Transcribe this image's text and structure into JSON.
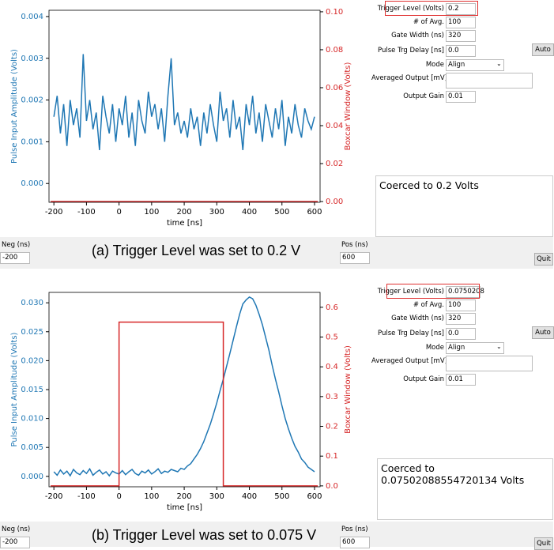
{
  "chart_data": [
    {
      "type": "line",
      "xlabel": "time [ns]",
      "ylabel": "Pulse Input Amplitude (Volts)",
      "y2label": "Boxcar Window (Volts)",
      "xlim": [
        -215,
        617
      ],
      "xticks": [
        -200,
        -100,
        0,
        100,
        200,
        300,
        400,
        500,
        600
      ],
      "ylim": [
        -0.00045,
        0.00415
      ],
      "yticks": [
        {
          "value": 0,
          "label": "0.000"
        },
        0.001,
        0.002,
        0.003,
        0.004
      ],
      "y2lim": [
        -0.0004,
        0.1008
      ],
      "y2ticks": [
        {
          "value": 0,
          "label": "0.00"
        },
        0.02,
        0.04,
        0.06,
        0.08,
        {
          "value": 0.1,
          "label": "0.10"
        }
      ],
      "x": [
        -200,
        -190,
        -180,
        -170,
        -160,
        -150,
        -140,
        -130,
        -120,
        -110,
        -100,
        -90,
        -80,
        -70,
        -60,
        -50,
        -40,
        -30,
        -20,
        -10,
        0,
        10,
        20,
        30,
        40,
        50,
        60,
        70,
        80,
        90,
        100,
        110,
        120,
        130,
        140,
        150,
        160,
        170,
        180,
        190,
        200,
        210,
        220,
        230,
        240,
        250,
        260,
        270,
        280,
        290,
        300,
        310,
        320,
        330,
        340,
        350,
        360,
        370,
        380,
        390,
        400,
        410,
        420,
        430,
        440,
        450,
        460,
        470,
        480,
        490,
        500,
        510,
        520,
        530,
        540,
        550,
        560,
        570,
        580,
        590,
        600
      ],
      "series": [
        {
          "color": "#1f77b4",
          "values": [
            0.0016,
            0.0021,
            0.0012,
            0.0019,
            0.0009,
            0.002,
            0.0014,
            0.0018,
            0.0011,
            0.0031,
            0.0015,
            0.002,
            0.0013,
            0.0017,
            0.0008,
            0.0021,
            0.0016,
            0.0012,
            0.0019,
            0.001,
            0.0018,
            0.0014,
            0.0021,
            0.0011,
            0.0017,
            0.0009,
            0.002,
            0.0015,
            0.0012,
            0.0022,
            0.0016,
            0.0019,
            0.0013,
            0.0018,
            0.001,
            0.0021,
            0.003,
            0.0014,
            0.0017,
            0.0012,
            0.0015,
            0.0011,
            0.0018,
            0.0013,
            0.0016,
            0.0009,
            0.0017,
            0.0012,
            0.0019,
            0.0014,
            0.001,
            0.0022,
            0.0015,
            0.0018,
            0.0011,
            0.002,
            0.0013,
            0.0016,
            0.0008,
            0.0019,
            0.0014,
            0.0021,
            0.0012,
            0.0017,
            0.001,
            0.0019,
            0.0015,
            0.0011,
            0.0018,
            0.0013,
            0.002,
            0.0009,
            0.0016,
            0.0012,
            0.0019,
            0.0014,
            0.0011,
            0.0018,
            0.0015,
            0.0013,
            0.0016
          ]
        },
        {
          "color": "#d62728",
          "axis": "y2",
          "x": [
            -210,
            610
          ],
          "values": [
            0,
            0
          ]
        }
      ]
    },
    {
      "type": "line",
      "xlabel": "time [ns]",
      "ylabel": "Pulse Input Amplitude (Volts)",
      "y2label": "Boxcar Window (Volts)",
      "xlim": [
        -215,
        617
      ],
      "xticks": [
        -200,
        -100,
        0,
        100,
        200,
        300,
        400,
        500,
        600
      ],
      "ylim": [
        -0.0018,
        0.0318
      ],
      "yticks": [
        {
          "value": 0,
          "label": "0.000"
        },
        0.005,
        {
          "value": 0.01,
          "label": "0.010"
        },
        0.015,
        {
          "value": 0.02,
          "label": "0.020"
        },
        0.025,
        {
          "value": 0.03,
          "label": "0.030"
        }
      ],
      "y2lim": [
        -0.003,
        0.65
      ],
      "y2ticks": [
        {
          "value": 0,
          "label": "0.0"
        },
        0.1,
        0.2,
        0.3,
        0.4,
        0.5,
        0.6
      ],
      "x": [
        -200,
        -190,
        -180,
        -170,
        -160,
        -150,
        -140,
        -130,
        -120,
        -110,
        -100,
        -90,
        -80,
        -70,
        -60,
        -50,
        -40,
        -30,
        -20,
        -10,
        0,
        10,
        20,
        30,
        40,
        50,
        60,
        70,
        80,
        90,
        100,
        110,
        120,
        130,
        140,
        150,
        160,
        170,
        180,
        190,
        200,
        210,
        220,
        230,
        240,
        250,
        260,
        270,
        280,
        290,
        300,
        310,
        320,
        330,
        340,
        350,
        360,
        370,
        380,
        390,
        400,
        410,
        420,
        430,
        440,
        450,
        460,
        470,
        480,
        490,
        500,
        510,
        520,
        530,
        540,
        550,
        560,
        570,
        580,
        590,
        600
      ],
      "series": [
        {
          "color": "#1f77b4",
          "values": [
            0.0008,
            0.0002,
            0.0011,
            0.0004,
            0.0009,
            0.0001,
            0.0012,
            0.0006,
            0.0003,
            0.001,
            0.0005,
            0.0013,
            0.0002,
            0.0007,
            0.0011,
            0.0004,
            0.0008,
            0.0001,
            0.0009,
            0.0006,
            0.0004,
            0.001,
            0.0003,
            0.0008,
            0.0012,
            0.0005,
            0.0002,
            0.0009,
            0.0006,
            0.0011,
            0.0004,
            0.0008,
            0.0013,
            0.0005,
            0.0009,
            0.0007,
            0.0012,
            0.001,
            0.0008,
            0.0014,
            0.0012,
            0.0018,
            0.0022,
            0.003,
            0.0038,
            0.0048,
            0.006,
            0.0075,
            0.009,
            0.0108,
            0.0127,
            0.0148,
            0.0168,
            0.019,
            0.0212,
            0.0235,
            0.0258,
            0.028,
            0.0298,
            0.0305,
            0.031,
            0.0307,
            0.0296,
            0.028,
            0.0262,
            0.024,
            0.0218,
            0.0192,
            0.0168,
            0.0146,
            0.0122,
            0.01,
            0.0082,
            0.0066,
            0.0052,
            0.0042,
            0.003,
            0.0024,
            0.0016,
            0.0012,
            0.0008
          ]
        },
        {
          "color": "#d62728",
          "axis": "y2",
          "x": [
            -210,
            0,
            0,
            320,
            320,
            610
          ],
          "values": [
            0,
            0,
            0.55,
            0.55,
            0,
            0
          ]
        }
      ]
    }
  ],
  "panels": [
    {
      "fields": [
        {
          "label": "Trigger Level (Volts)",
          "value": "0.2"
        },
        {
          "label": "# of Avg.",
          "value": "100"
        },
        {
          "label": "Gate Width (ns)",
          "value": "320"
        },
        {
          "label": "Pulse Trg Delay [ns]",
          "value": "0.0"
        },
        {
          "label": "Mode",
          "value": "Align"
        },
        {
          "label": "Averaged Output [mV]"
        },
        {
          "label": "Output Gain",
          "value": "0.01"
        }
      ],
      "auto": "Auto",
      "message": "Coerced to 0.2 Volts",
      "neg_label": "Neg (ns)",
      "neg": "-200",
      "pos_label": "Pos (ns)",
      "pos": "600",
      "quit": "Quit",
      "caption": "(a) Trigger Level was set to 0.2 V"
    },
    {
      "fields": [
        {
          "label": "Trigger Level (Volts)",
          "value": "0.0750208"
        },
        {
          "label": "# of Avg.",
          "value": "100"
        },
        {
          "label": "Gate Width (ns)",
          "value": "320"
        },
        {
          "label": "Pulse Trg Delay [ns]",
          "value": "0.0"
        },
        {
          "label": "Mode",
          "value": "Align"
        },
        {
          "label": "Averaged Output [mV]"
        },
        {
          "label": "Output Gain",
          "value": "0.01"
        }
      ],
      "auto": "Auto",
      "message": "Coerced to 0.07502088554720134 Volts",
      "neg_label": "Neg (ns)",
      "neg": "-200",
      "pos_label": "Pos (ns)",
      "pos": "600",
      "quit": "Quit",
      "caption": "(b) Trigger Level was set to 0.075 V"
    }
  ]
}
